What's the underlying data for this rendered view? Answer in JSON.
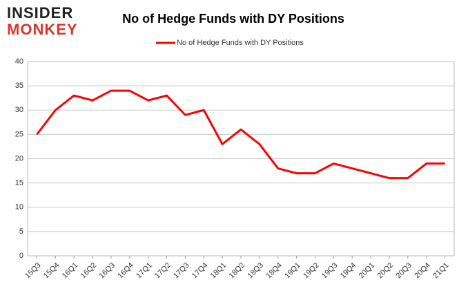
{
  "logo": [
    "INSIDER",
    "MONKEY"
  ],
  "chart_data": {
    "type": "line",
    "title": "No of Hedge Funds with DY Positions",
    "categories": [
      "15Q3",
      "15Q4",
      "16Q1",
      "16Q2",
      "16Q3",
      "16Q4",
      "17Q1",
      "17Q2",
      "17Q3",
      "17Q4",
      "18Q1",
      "18Q2",
      "18Q3",
      "18Q4",
      "19Q1",
      "19Q2",
      "19Q3",
      "19Q4",
      "20Q1",
      "20Q2",
      "20Q3",
      "20Q4",
      "21Q1"
    ],
    "series": [
      {
        "name": "No of Hedge Funds with DY Positions",
        "color": "#ff0000",
        "values": [
          25,
          30,
          33,
          32,
          34,
          34,
          32,
          33,
          29,
          30,
          23,
          26,
          23,
          18,
          17,
          17,
          19,
          18,
          17,
          16,
          16,
          19,
          19
        ]
      }
    ],
    "ylim": [
      0,
      40
    ],
    "yticks": [
      0,
      5,
      10,
      15,
      20,
      25,
      30,
      35,
      40
    ],
    "grid": true,
    "legend": "top"
  }
}
